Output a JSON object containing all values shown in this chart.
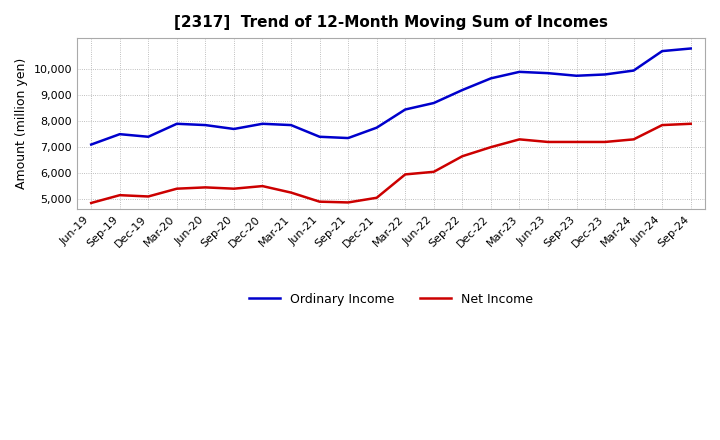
{
  "title": "[2317]  Trend of 12-Month Moving Sum of Incomes",
  "ylabel": "Amount (million yen)",
  "x_labels": [
    "Jun-19",
    "Sep-19",
    "Dec-19",
    "Mar-20",
    "Jun-20",
    "Sep-20",
    "Dec-20",
    "Mar-21",
    "Jun-21",
    "Sep-21",
    "Dec-21",
    "Mar-22",
    "Jun-22",
    "Sep-22",
    "Dec-22",
    "Mar-23",
    "Jun-23",
    "Sep-23",
    "Dec-23",
    "Mar-24",
    "Jun-24",
    "Sep-24"
  ],
  "ordinary_income": [
    7100,
    7500,
    7400,
    7900,
    7850,
    7700,
    7900,
    7850,
    7400,
    7350,
    7750,
    8450,
    8700,
    9200,
    9650,
    9900,
    9850,
    9750,
    9800,
    9950,
    10700,
    10800
  ],
  "net_income": [
    4850,
    5150,
    5100,
    5400,
    5450,
    5400,
    5500,
    5250,
    4900,
    4870,
    5050,
    5950,
    6050,
    6650,
    7000,
    7300,
    7200,
    7200,
    7200,
    7300,
    7850,
    7900
  ],
  "ordinary_color": "#0000cc",
  "net_color": "#cc0000",
  "ylim_min": 4600,
  "ylim_max": 11200,
  "yticks": [
    5000,
    6000,
    7000,
    8000,
    9000,
    10000
  ],
  "background_color": "#ffffff",
  "grid_color": "#aaaaaa"
}
